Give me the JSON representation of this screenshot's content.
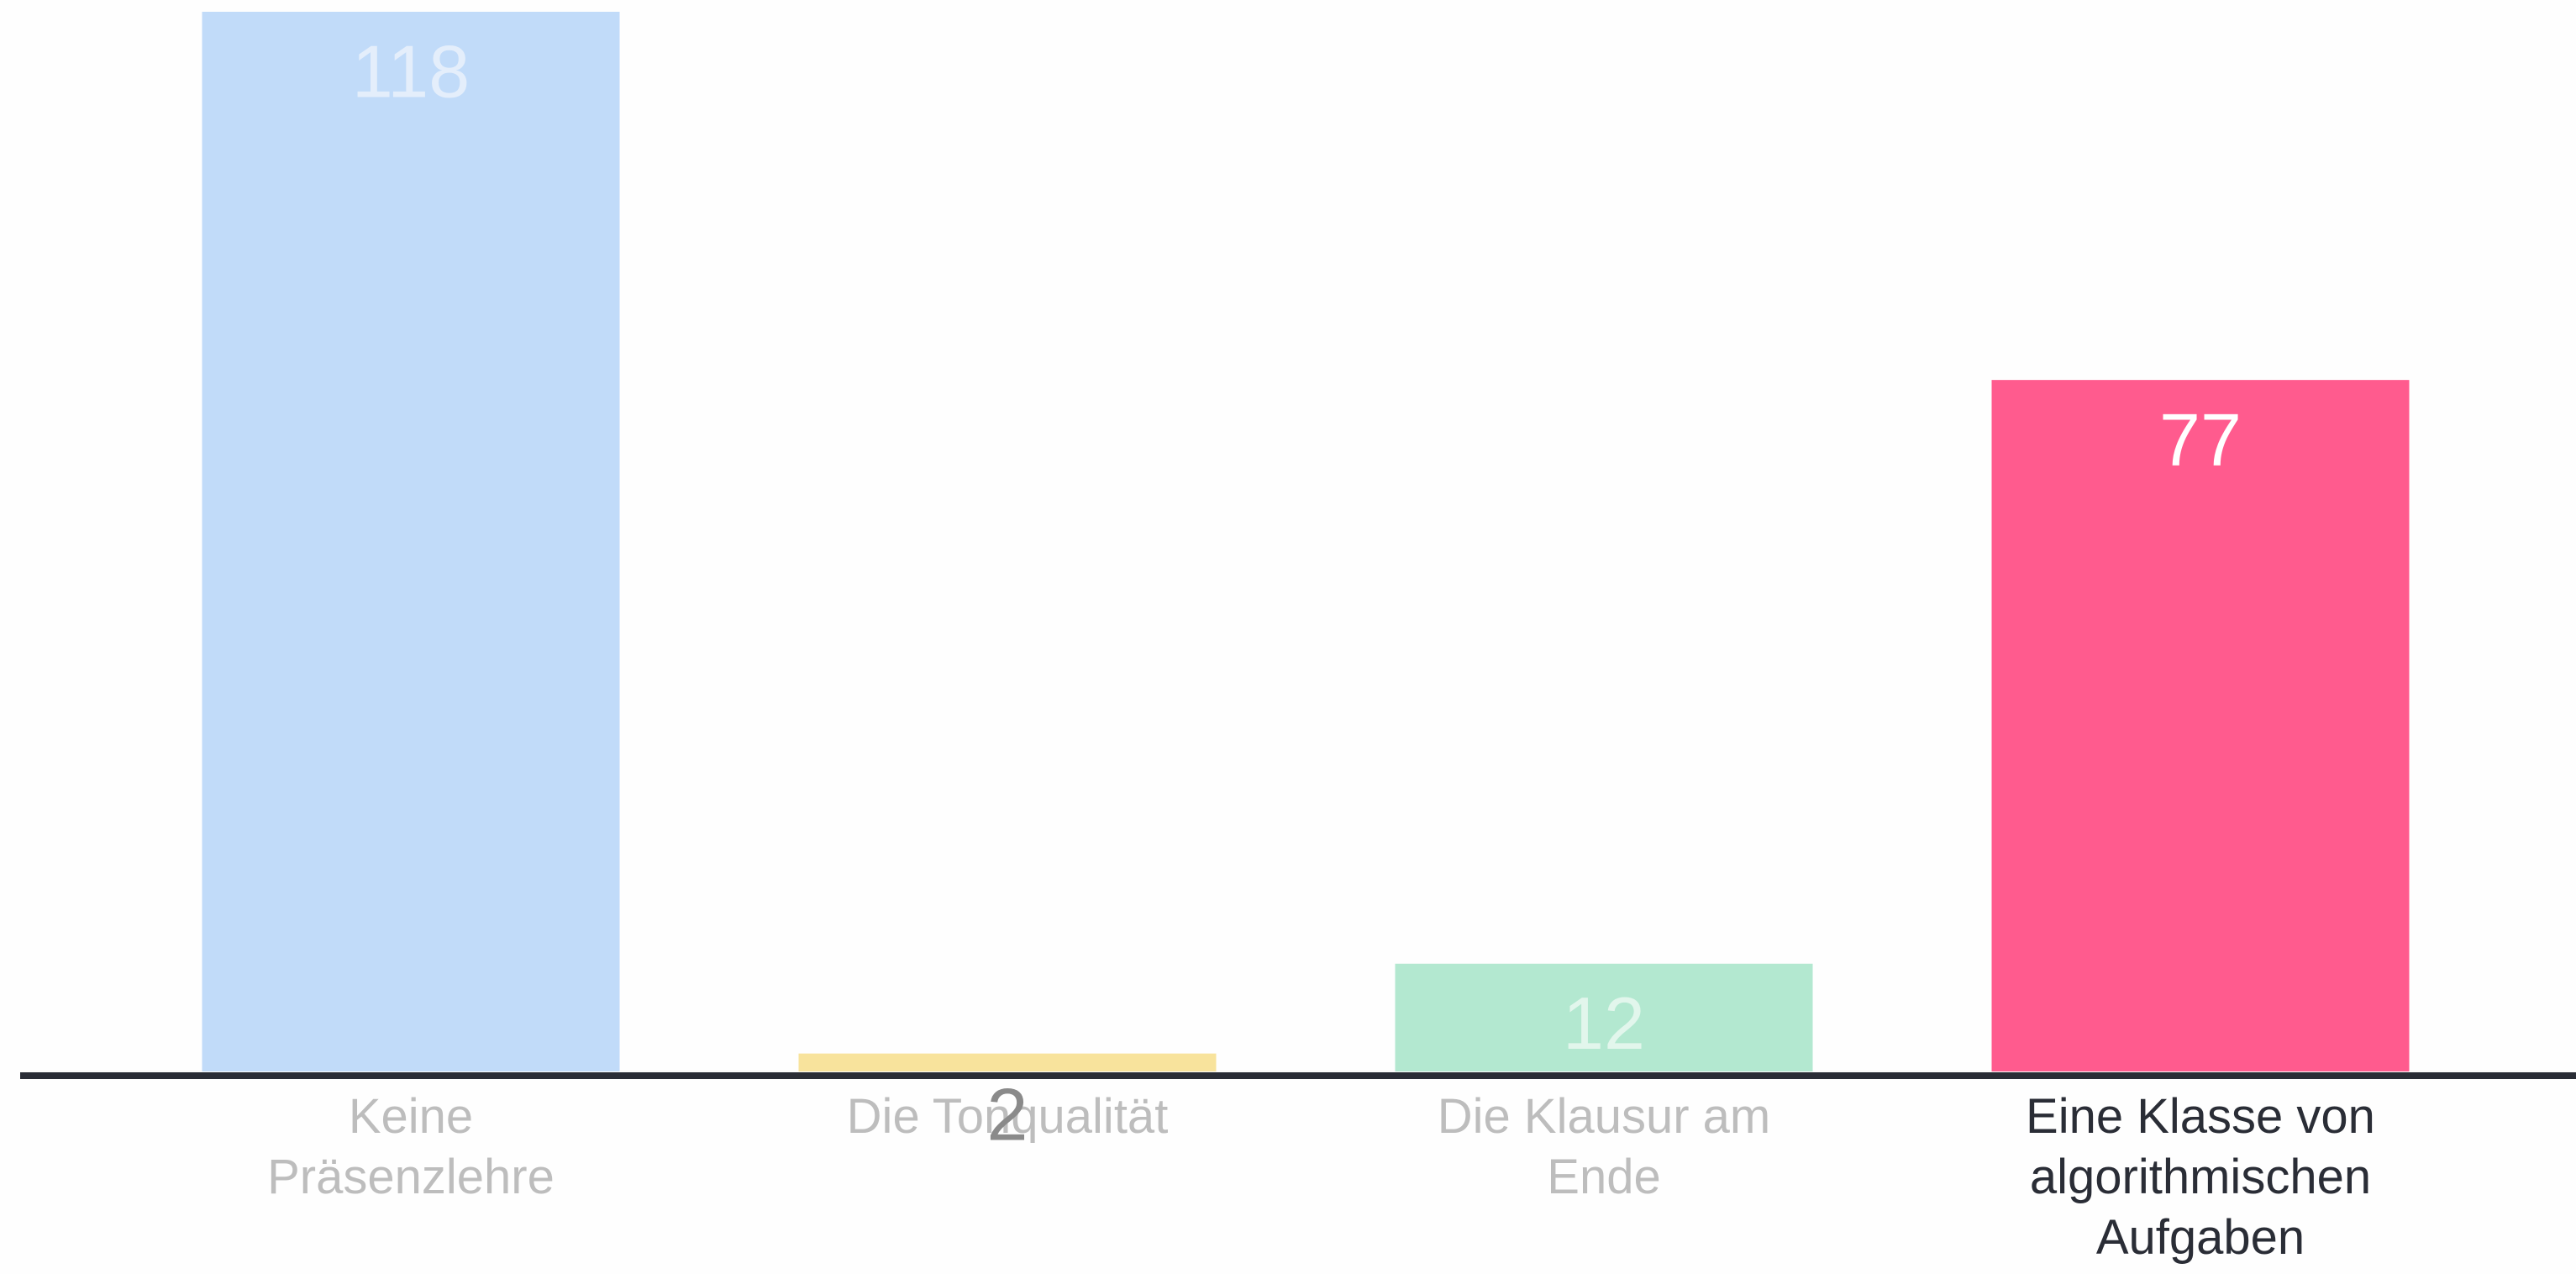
{
  "chart_data": {
    "type": "bar",
    "categories": [
      "Keine Präsenzlehre",
      "Die Tonqualität",
      "Die Klausur am Ende",
      "Eine Klasse von algorithmischen Aufgaben"
    ],
    "values": [
      118,
      2,
      12,
      77
    ],
    "colors": [
      "#c1dbf9",
      "#f8e39c",
      "#b3e8d0",
      "#ff5b8e"
    ],
    "label_colors": [
      "#bdbdbd",
      "#bdbdbd",
      "#bdbdbd",
      "#2a2d36"
    ],
    "value_label_colors": [
      "#e4eefb",
      "#8a8a8a",
      "#e2f6ec",
      "#ffffff"
    ]
  }
}
